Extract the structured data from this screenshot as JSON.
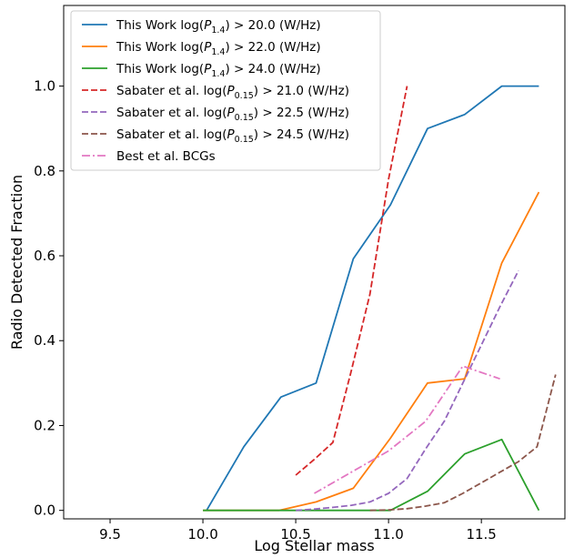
{
  "chart_data": {
    "type": "line",
    "title": "",
    "xlabel": "Log Stellar mass",
    "ylabel": "Radio Detected Fraction",
    "xlim": [
      9.25,
      11.95
    ],
    "ylim": [
      -0.02,
      1.19
    ],
    "xticks": [
      "9.5",
      "10.0",
      "10.5",
      "11.0",
      "11.5"
    ],
    "yticks": [
      "0.0",
      "0.2",
      "0.4",
      "0.6",
      "0.8",
      "1.0"
    ],
    "grid": false,
    "legend_position": "top-left",
    "series": [
      {
        "name_main": "This Work log(",
        "name_sym": "P",
        "name_sub": "1.4",
        "name_tail": ") > 20.0 (W/Hz)",
        "color": "#1f77b4",
        "style": "solid",
        "x": [
          10.02,
          10.22,
          10.42,
          10.61,
          10.81,
          11.01,
          11.21,
          11.41,
          11.61,
          11.81
        ],
        "y": [
          0.0,
          0.15,
          0.267,
          0.3,
          0.593,
          0.72,
          0.9,
          0.933,
          1.0,
          1.0
        ]
      },
      {
        "name_main": "This Work log(",
        "name_sym": "P",
        "name_sub": "1.4",
        "name_tail": ") > 22.0 (W/Hz)",
        "color": "#ff7f0e",
        "style": "solid",
        "x": [
          10.0,
          10.21,
          10.41,
          10.61,
          10.81,
          11.01,
          11.21,
          11.41,
          11.61,
          11.81
        ],
        "y": [
          0.0,
          0.0,
          0.0,
          0.02,
          0.052,
          0.17,
          0.3,
          0.31,
          0.583,
          0.75
        ]
      },
      {
        "name_main": "This Work log(",
        "name_sym": "P",
        "name_sub": "1.4",
        "name_tail": ") > 24.0 (W/Hz)",
        "color": "#2ca02c",
        "style": "solid",
        "x": [
          10.0,
          10.21,
          10.41,
          10.61,
          10.81,
          11.01,
          11.21,
          11.41,
          11.61,
          11.81
        ],
        "y": [
          0.0,
          0.0,
          0.0,
          0.0,
          0.0,
          0.0,
          0.045,
          0.133,
          0.167,
          0.0
        ]
      },
      {
        "name_main": "Sabater et al. log(",
        "name_sym": "P",
        "name_sub": "0.15",
        "name_tail": ") > 21.0 (W/Hz)",
        "color": "#d62728",
        "style": "dashed",
        "x": [
          10.5,
          10.6,
          10.7,
          10.8,
          10.9,
          11.0,
          11.1
        ],
        "y": [
          0.083,
          0.12,
          0.16,
          0.33,
          0.51,
          0.78,
          1.0
        ]
      },
      {
        "name_main": "Sabater et al. log(",
        "name_sym": "P",
        "name_sub": "0.15",
        "name_tail": ") > 22.5 (W/Hz)",
        "color": "#9467bd",
        "style": "dashed",
        "x": [
          10.5,
          10.6,
          10.7,
          10.8,
          10.9,
          11.0,
          11.1,
          11.2,
          11.3,
          11.4,
          11.5,
          11.6,
          11.7
        ],
        "y": [
          0.0,
          0.003,
          0.007,
          0.012,
          0.02,
          0.04,
          0.075,
          0.145,
          0.21,
          0.3,
          0.39,
          0.48,
          0.565
        ]
      },
      {
        "name_main": "Sabater et al. log(",
        "name_sym": "P",
        "name_sub": "0.15",
        "name_tail": ") > 24.5 (W/Hz)",
        "color": "#8c564b",
        "style": "dashed",
        "x": [
          10.9,
          11.0,
          11.1,
          11.2,
          11.3,
          11.4,
          11.5,
          11.6,
          11.7,
          11.8,
          11.9
        ],
        "y": [
          0.0,
          0.001,
          0.004,
          0.01,
          0.018,
          0.04,
          0.065,
          0.09,
          0.115,
          0.15,
          0.32
        ]
      },
      {
        "name_main": "Best et al. BCGs",
        "name_sym": "",
        "name_sub": "",
        "name_tail": "",
        "color": "#e377c2",
        "style": "dashdot",
        "x": [
          10.6,
          10.8,
          11.0,
          11.2,
          11.4,
          11.6
        ],
        "y": [
          0.04,
          0.09,
          0.14,
          0.21,
          0.34,
          0.31
        ]
      }
    ]
  }
}
